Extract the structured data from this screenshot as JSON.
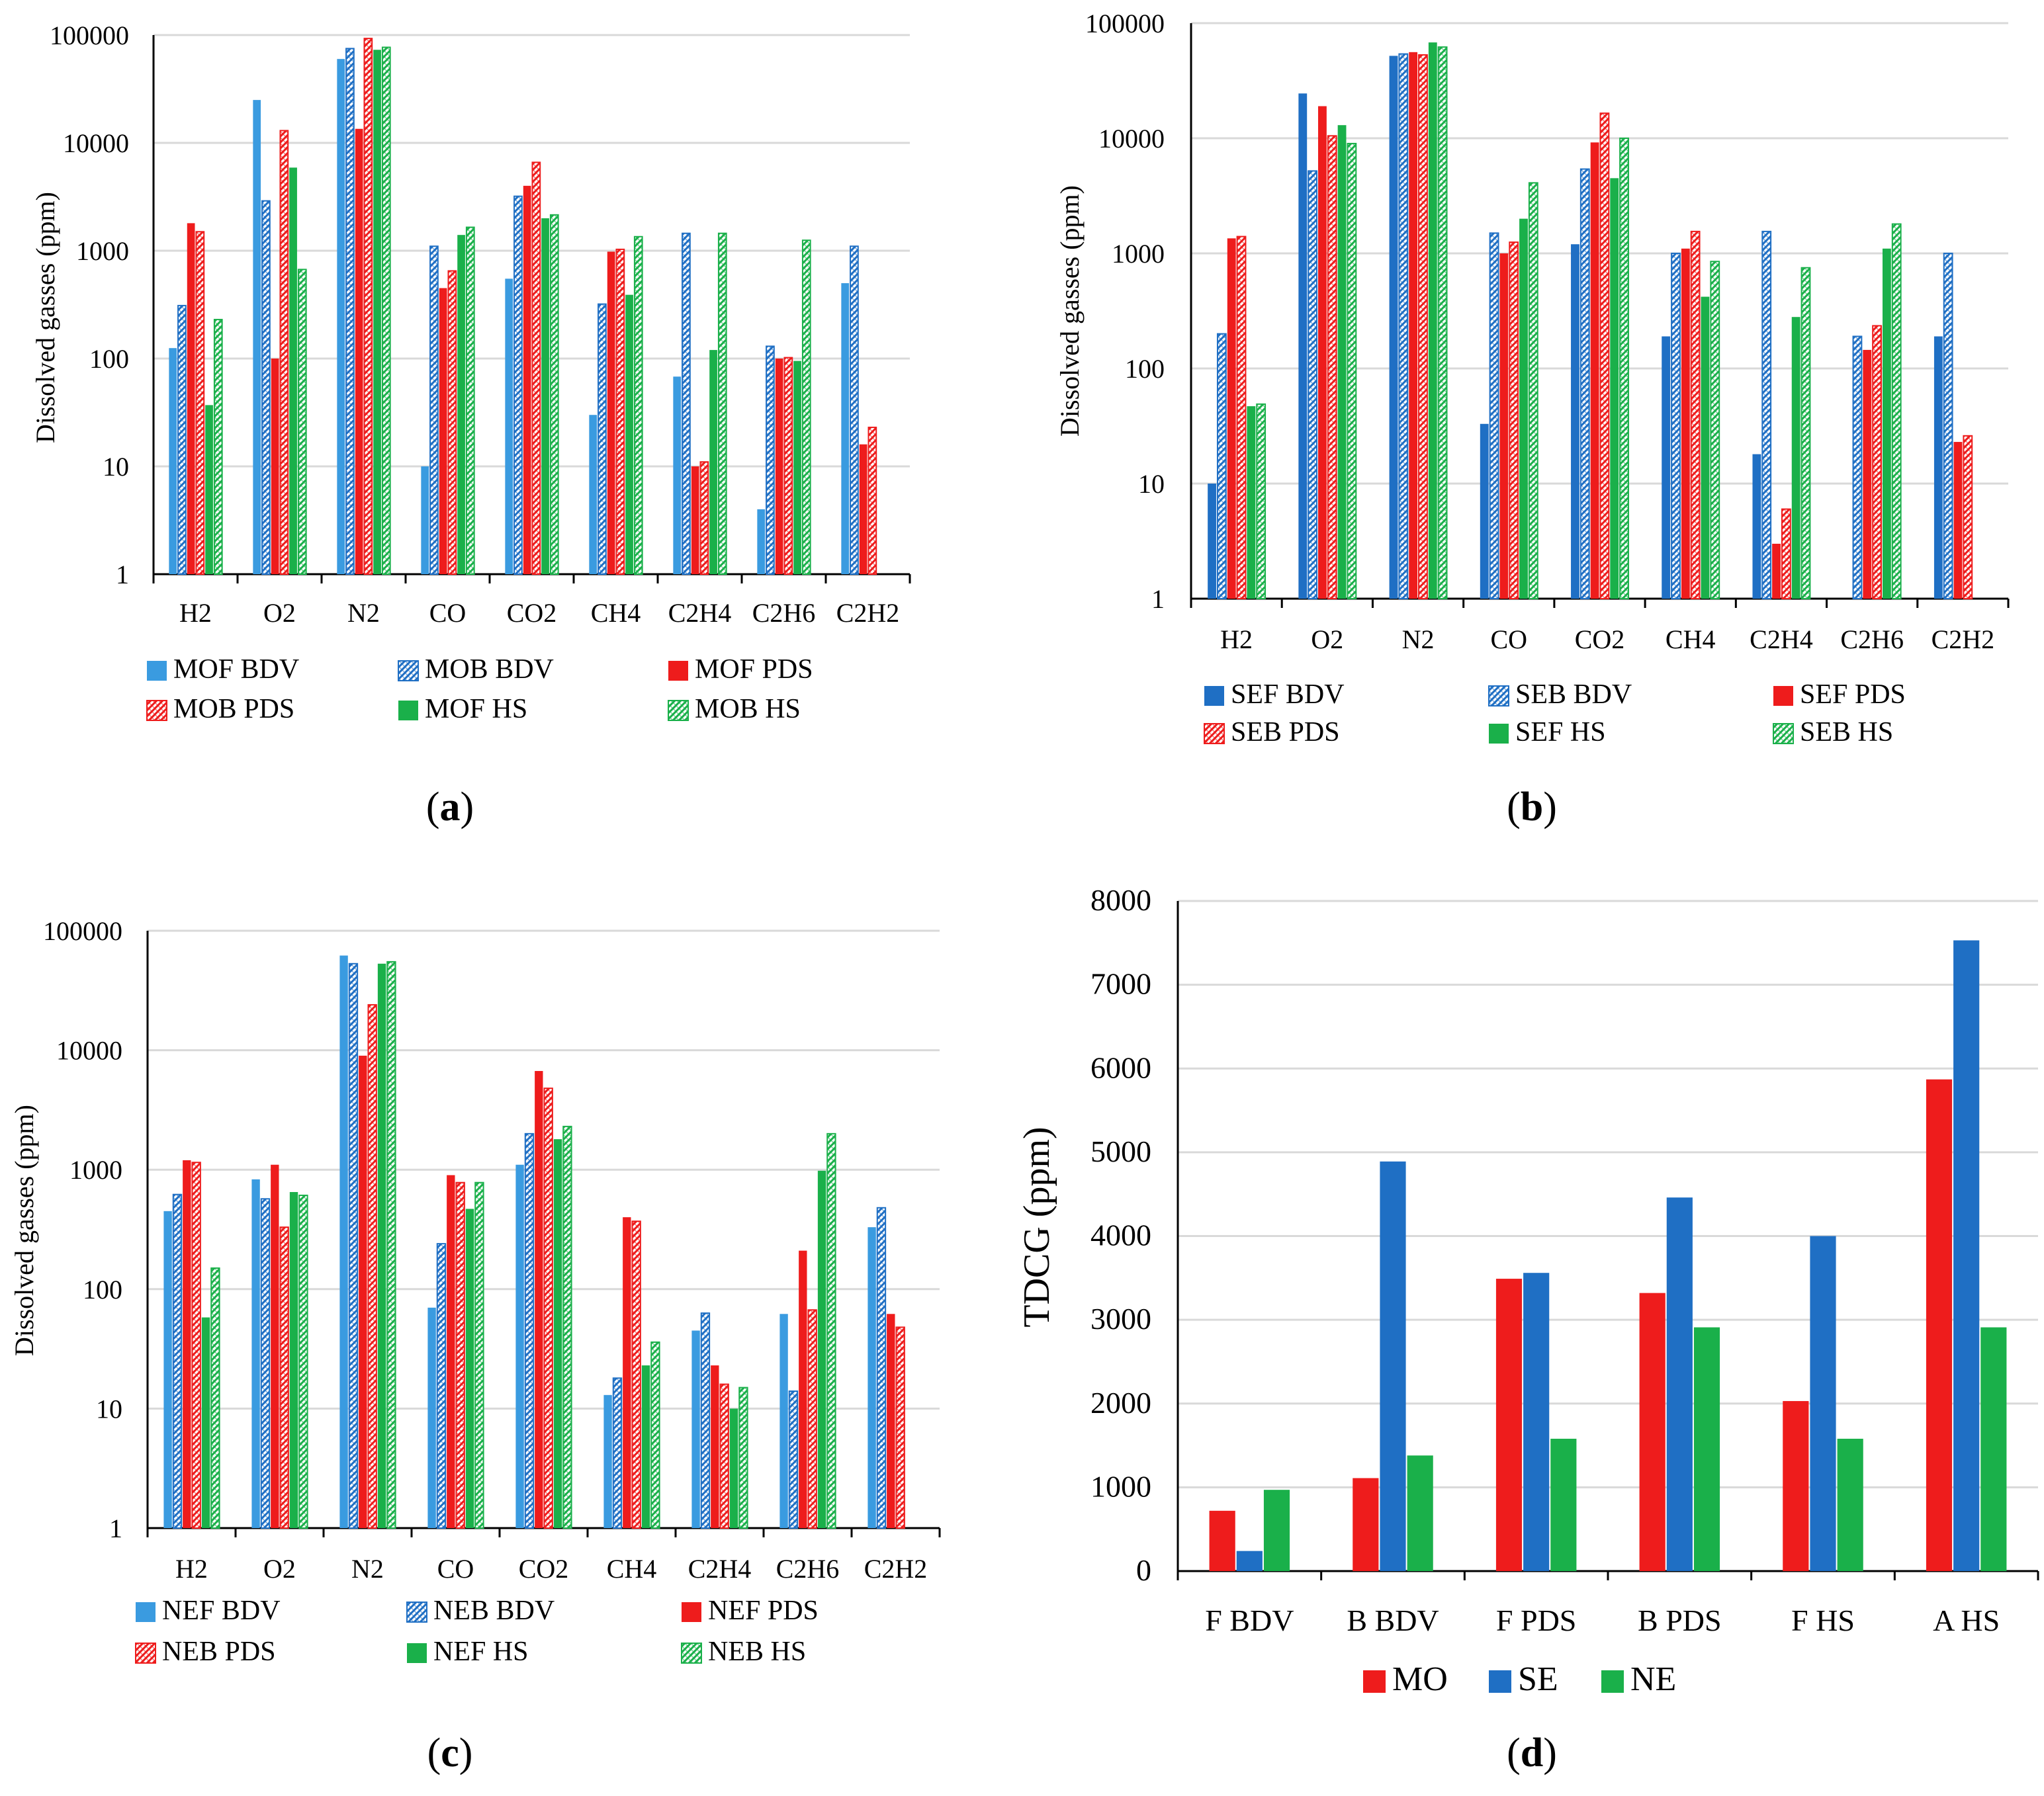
{
  "colors": {
    "mo_red": "#ee1c1c",
    "se_blue": "#1f6fc4",
    "ne_green": "#1ab04a",
    "light_blue": "#3a9be0",
    "grid": "#d9d9d9"
  },
  "chart_data": [
    {
      "id": "a",
      "panel_label": "a",
      "type": "bar",
      "scale": "log",
      "ylim": [
        1,
        100000
      ],
      "ylabel": "Dissolved gasses (ppm)",
      "yticks": [
        "1",
        "10",
        "100",
        "1000",
        "10000",
        "100000"
      ],
      "categories": [
        "H2",
        "O2",
        "N2",
        "CO",
        "CO2",
        "CH4",
        "C2H4",
        "C2H6",
        "C2H2"
      ],
      "series": [
        {
          "name": "MOF BDV",
          "color": "#3a9be0",
          "pattern": "solid",
          "values": [
            125,
            25000,
            60000,
            10,
            550,
            30,
            68,
            4,
            500
          ]
        },
        {
          "name": "MOB BDV",
          "color": "#1f6fc4",
          "pattern": "hatch",
          "values": [
            310,
            2900,
            75000,
            1100,
            3200,
            320,
            1450,
            130,
            1100
          ]
        },
        {
          "name": "MOF PDS",
          "color": "#ee1c1c",
          "pattern": "solid",
          "values": [
            1800,
            100,
            13500,
            450,
            4000,
            980,
            10,
            100,
            16
          ]
        },
        {
          "name": "MOB PDS",
          "color": "#ee1c1c",
          "pattern": "hatch",
          "values": [
            1500,
            13000,
            93000,
            650,
            6600,
            1030,
            11,
            102,
            23
          ]
        },
        {
          "name": "MOF HS",
          "color": "#1ab04a",
          "pattern": "solid",
          "values": [
            37,
            5900,
            73000,
            1400,
            2000,
            390,
            120,
            95,
            null
          ]
        },
        {
          "name": "MOB HS",
          "color": "#1ab04a",
          "pattern": "hatch",
          "values": [
            230,
            670,
            77000,
            1650,
            2150,
            1350,
            1450,
            1250,
            null
          ]
        }
      ]
    },
    {
      "id": "b",
      "panel_label": "b",
      "type": "bar",
      "scale": "log",
      "ylim": [
        1,
        100000
      ],
      "ylabel": "Dissolved gasses (ppm)",
      "yticks": [
        "1",
        "10",
        "100",
        "1000",
        "10000",
        "100000"
      ],
      "categories": [
        "H2",
        "O2",
        "N2",
        "CO",
        "CO2",
        "CH4",
        "C2H4",
        "C2H6",
        "C2H2"
      ],
      "series": [
        {
          "name": "SEF BDV",
          "color": "#1f6fc4",
          "pattern": "solid",
          "values": [
            10,
            24500,
            52000,
            33,
            1200,
            190,
            18,
            null,
            190
          ]
        },
        {
          "name": "SEB BDV",
          "color": "#1f6fc4",
          "pattern": "hatch",
          "values": [
            200,
            5200,
            54000,
            1500,
            5400,
            1000,
            1550,
            190,
            1000
          ]
        },
        {
          "name": "SEF PDS",
          "color": "#ee1c1c",
          "pattern": "solid",
          "values": [
            1350,
            19000,
            56000,
            1000,
            9200,
            1100,
            3,
            145,
            23
          ]
        },
        {
          "name": "SEB PDS",
          "color": "#ee1c1c",
          "pattern": "hatch",
          "values": [
            1400,
            10500,
            53000,
            1250,
            16500,
            1550,
            6,
            235,
            26
          ]
        },
        {
          "name": "SEF HS",
          "color": "#1ab04a",
          "pattern": "solid",
          "values": [
            47,
            13000,
            68000,
            2000,
            4500,
            420,
            280,
            1100,
            null
          ]
        },
        {
          "name": "SEB HS",
          "color": "#1ab04a",
          "pattern": "hatch",
          "values": [
            49,
            9000,
            62000,
            4100,
            10000,
            850,
            750,
            1800,
            null
          ]
        }
      ]
    },
    {
      "id": "c",
      "panel_label": "c",
      "type": "bar",
      "scale": "log",
      "ylim": [
        1,
        100000
      ],
      "ylabel": "Dissolved gasses (ppm)",
      "yticks": [
        "1",
        "10",
        "100",
        "1000",
        "10000",
        "100000"
      ],
      "categories": [
        "H2",
        "O2",
        "N2",
        "CO",
        "CO2",
        "CH4",
        "C2H4",
        "C2H6",
        "C2H2"
      ],
      "series": [
        {
          "name": "NEF BDV",
          "color": "#3a9be0",
          "pattern": "solid",
          "values": [
            450,
            830,
            62000,
            70,
            1100,
            13,
            45,
            62,
            330
          ]
        },
        {
          "name": "NEB BDV",
          "color": "#1f6fc4",
          "pattern": "hatch",
          "values": [
            620,
            570,
            53000,
            240,
            2000,
            18,
            63,
            14,
            480
          ]
        },
        {
          "name": "NEF PDS",
          "color": "#ee1c1c",
          "pattern": "solid",
          "values": [
            1200,
            1100,
            9000,
            900,
            6700,
            400,
            23,
            210,
            62
          ]
        },
        {
          "name": "NEB PDS",
          "color": "#ee1c1c",
          "pattern": "hatch",
          "values": [
            1150,
            330,
            24000,
            780,
            4800,
            370,
            16,
            67,
            48
          ]
        },
        {
          "name": "NEF HS",
          "color": "#1ab04a",
          "pattern": "solid",
          "values": [
            58,
            650,
            53000,
            470,
            1800,
            23,
            10,
            980,
            null
          ]
        },
        {
          "name": "NEB HS",
          "color": "#1ab04a",
          "pattern": "hatch",
          "values": [
            150,
            610,
            55000,
            780,
            2300,
            36,
            15,
            2000,
            null
          ]
        }
      ]
    },
    {
      "id": "d",
      "panel_label": "d",
      "type": "bar",
      "scale": "linear",
      "ylim": [
        0,
        8000
      ],
      "ylabel": "TDCG (ppm)",
      "yticks": [
        "0",
        "1000",
        "2000",
        "3000",
        "4000",
        "5000",
        "6000",
        "7000",
        "8000"
      ],
      "categories": [
        "F BDV",
        "B BDV",
        "F PDS",
        "B PDS",
        "F HS",
        "A HS"
      ],
      "series": [
        {
          "name": "MO",
          "color": "#ee1c1c",
          "pattern": "solid",
          "values": [
            720,
            1110,
            3490,
            3320,
            2030,
            5870
          ]
        },
        {
          "name": "SE",
          "color": "#1f6fc4",
          "pattern": "solid",
          "values": [
            240,
            4890,
            3560,
            4460,
            4000,
            7530
          ]
        },
        {
          "name": "NE",
          "color": "#1ab04a",
          "pattern": "solid",
          "values": [
            970,
            1380,
            1580,
            2910,
            1580,
            2910
          ]
        }
      ]
    }
  ]
}
